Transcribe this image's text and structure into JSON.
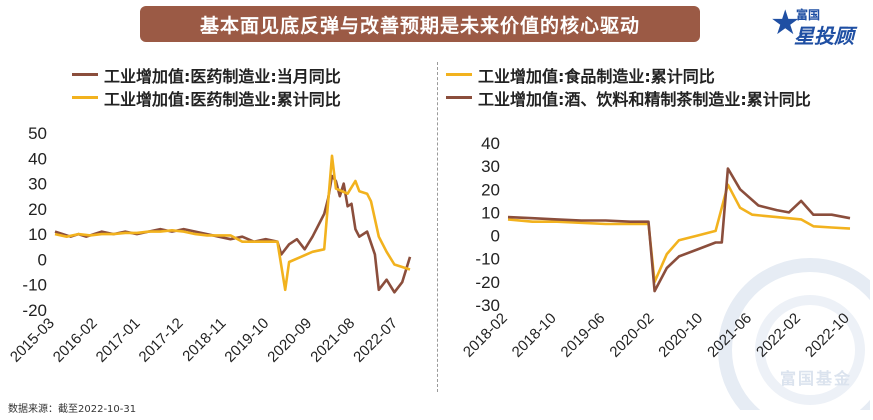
{
  "title": "基本面见底反弹与改善预期是未来价值的核心驱动",
  "logo": {
    "top": "富国",
    "main": "星投顾"
  },
  "watermark": "富国基金",
  "source": "数据来源：截至2022-10-31",
  "colors": {
    "brown": "#8b4e3c",
    "gold": "#f2b21e",
    "banner": "#9b5a45"
  },
  "chart_data": [
    {
      "type": "line",
      "ylim": [
        -20,
        50
      ],
      "yticks": [
        -20,
        -10,
        0,
        10,
        20,
        30,
        40,
        50
      ],
      "xticks": [
        "2015-03",
        "2016-02",
        "2017-01",
        "2017-12",
        "2018-11",
        "2019-10",
        "2020-09",
        "2021-08",
        "2022-07"
      ],
      "x_start": "2015-03",
      "x_end": "2022-10",
      "series": [
        {
          "name": "工业增加值:医药制造业:当月同比",
          "color": "#8b4e3c",
          "points": [
            [
              "2015-03",
              11
            ],
            [
              "2015-05",
              10
            ],
            [
              "2015-07",
              9
            ],
            [
              "2015-09",
              10
            ],
            [
              "2015-11",
              9
            ],
            [
              "2016-01",
              10
            ],
            [
              "2016-03",
              11
            ],
            [
              "2016-06",
              10
            ],
            [
              "2016-09",
              11
            ],
            [
              "2016-12",
              10
            ],
            [
              "2017-03",
              11
            ],
            [
              "2017-06",
              12
            ],
            [
              "2017-09",
              11
            ],
            [
              "2017-12",
              12
            ],
            [
              "2018-03",
              11
            ],
            [
              "2018-06",
              10
            ],
            [
              "2018-09",
              9
            ],
            [
              "2018-12",
              8
            ],
            [
              "2019-03",
              9
            ],
            [
              "2019-06",
              7
            ],
            [
              "2019-09",
              8
            ],
            [
              "2019-12",
              7
            ],
            [
              "2020-01",
              2
            ],
            [
              "2020-03",
              6
            ],
            [
              "2020-05",
              8
            ],
            [
              "2020-07",
              4
            ],
            [
              "2020-09",
              9
            ],
            [
              "2020-11",
              15
            ],
            [
              "2020-12",
              18
            ],
            [
              "2021-01",
              24
            ],
            [
              "2021-02",
              33
            ],
            [
              "2021-03",
              31
            ],
            [
              "2021-04",
              25
            ],
            [
              "2021-05",
              30
            ],
            [
              "2021-06",
              21
            ],
            [
              "2021-07",
              22
            ],
            [
              "2021-08",
              12
            ],
            [
              "2021-09",
              9
            ],
            [
              "2021-11",
              11
            ],
            [
              "2022-01",
              2
            ],
            [
              "2022-02",
              -12
            ],
            [
              "2022-04",
              -8
            ],
            [
              "2022-06",
              -13
            ],
            [
              "2022-08",
              -9
            ],
            [
              "2022-10",
              1
            ]
          ]
        },
        {
          "name": "工业增加值:医药制造业:累计同比",
          "color": "#f2b21e",
          "points": [
            [
              "2015-03",
              10
            ],
            [
              "2015-06",
              9
            ],
            [
              "2015-09",
              10
            ],
            [
              "2015-12",
              9.5
            ],
            [
              "2016-03",
              10
            ],
            [
              "2016-06",
              10
            ],
            [
              "2016-09",
              10.5
            ],
            [
              "2016-12",
              10.5
            ],
            [
              "2017-03",
              11
            ],
            [
              "2017-06",
              11
            ],
            [
              "2017-09",
              11.5
            ],
            [
              "2017-12",
              11
            ],
            [
              "2018-03",
              10
            ],
            [
              "2018-06",
              9.5
            ],
            [
              "2018-09",
              9.5
            ],
            [
              "2018-12",
              9.5
            ],
            [
              "2019-03",
              7
            ],
            [
              "2019-06",
              7
            ],
            [
              "2019-09",
              7
            ],
            [
              "2019-12",
              7
            ],
            [
              "2020-02",
              -12
            ],
            [
              "2020-03",
              -1
            ],
            [
              "2020-06",
              1
            ],
            [
              "2020-09",
              3
            ],
            [
              "2020-12",
              4
            ],
            [
              "2021-02",
              41
            ],
            [
              "2021-03",
              28
            ],
            [
              "2021-06",
              26
            ],
            [
              "2021-08",
              31
            ],
            [
              "2021-09",
              27
            ],
            [
              "2021-11",
              26
            ],
            [
              "2021-12",
              23
            ],
            [
              "2022-02",
              9
            ],
            [
              "2022-04",
              3
            ],
            [
              "2022-06",
              -2
            ],
            [
              "2022-08",
              -3
            ],
            [
              "2022-10",
              -4
            ]
          ]
        }
      ]
    },
    {
      "type": "line",
      "ylim": [
        -30,
        40
      ],
      "yticks": [
        -30,
        -20,
        -10,
        0,
        10,
        20,
        30,
        40
      ],
      "xticks": [
        "2018-02",
        "2018-10",
        "2019-06",
        "2020-02",
        "2020-10",
        "2021-06",
        "2022-02",
        "2022-10"
      ],
      "x_start": "2018-02",
      "x_end": "2022-10",
      "series": [
        {
          "name": "工业增加值:食品制造业:累计同比",
          "color": "#f2b21e",
          "points": [
            [
              "2018-02",
              7
            ],
            [
              "2018-06",
              6
            ],
            [
              "2018-10",
              6
            ],
            [
              "2019-02",
              5.5
            ],
            [
              "2019-06",
              5
            ],
            [
              "2019-10",
              5
            ],
            [
              "2020-01",
              5
            ],
            [
              "2020-02",
              -20
            ],
            [
              "2020-04",
              -8
            ],
            [
              "2020-06",
              -2
            ],
            [
              "2020-09",
              0
            ],
            [
              "2020-12",
              2
            ],
            [
              "2021-02",
              22
            ],
            [
              "2021-04",
              12
            ],
            [
              "2021-06",
              9
            ],
            [
              "2021-10",
              8
            ],
            [
              "2022-02",
              7
            ],
            [
              "2022-04",
              4
            ],
            [
              "2022-07",
              3.5
            ],
            [
              "2022-10",
              3
            ]
          ]
        },
        {
          "name": "工业增加值:酒、饮料和精制茶制造业:累计同比",
          "color": "#8b4e3c",
          "points": [
            [
              "2018-02",
              8
            ],
            [
              "2018-06",
              7.5
            ],
            [
              "2018-10",
              7
            ],
            [
              "2019-02",
              6.5
            ],
            [
              "2019-06",
              6.5
            ],
            [
              "2019-10",
              6
            ],
            [
              "2020-01",
              6
            ],
            [
              "2020-02",
              -24
            ],
            [
              "2020-04",
              -14
            ],
            [
              "2020-06",
              -9
            ],
            [
              "2020-09",
              -6
            ],
            [
              "2020-12",
              -3
            ],
            [
              "2021-01",
              -3
            ],
            [
              "2021-02",
              29
            ],
            [
              "2021-04",
              20
            ],
            [
              "2021-07",
              13
            ],
            [
              "2021-10",
              11
            ],
            [
              "2021-12",
              10
            ],
            [
              "2022-02",
              15
            ],
            [
              "2022-04",
              9
            ],
            [
              "2022-07",
              9
            ],
            [
              "2022-10",
              7.5
            ]
          ]
        }
      ]
    }
  ]
}
